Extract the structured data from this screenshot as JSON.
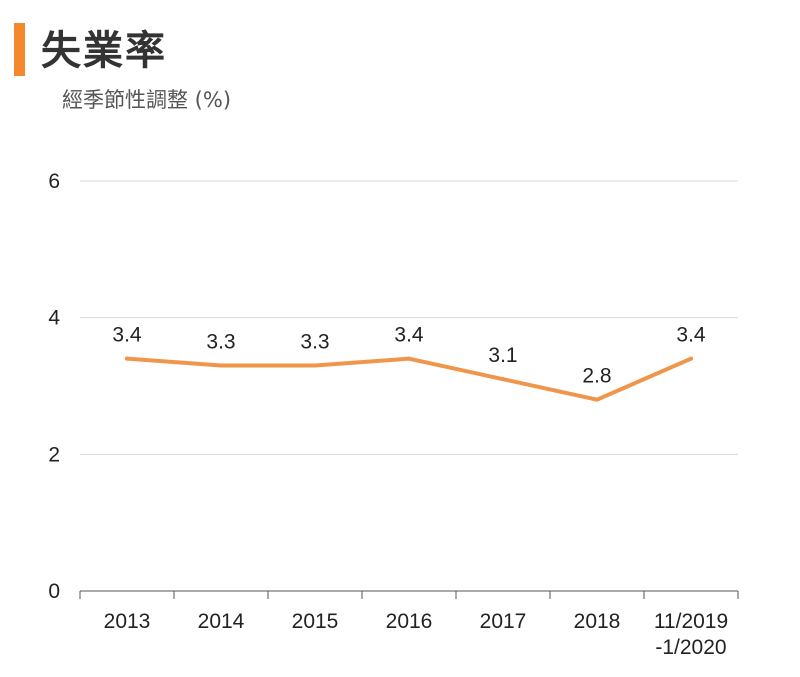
{
  "header": {
    "title": "失業率",
    "subtitle": "經季節性調整 (%)"
  },
  "colors": {
    "accent": "#f5872d",
    "line": "#f0964a",
    "grid": "#d9d9d9",
    "axis": "#555555"
  },
  "chart_data": {
    "type": "line",
    "title": "失業率",
    "subtitle": "經季節性調整 (%)",
    "categories": [
      [
        "2013"
      ],
      [
        "2014"
      ],
      [
        "2015"
      ],
      [
        "2016"
      ],
      [
        "2017"
      ],
      [
        "2018"
      ],
      [
        "11/2019",
        "-1/2020"
      ]
    ],
    "series": [
      {
        "values": [
          3.4,
          3.3,
          3.3,
          3.4,
          3.1,
          2.8,
          3.4
        ]
      }
    ],
    "data_labels": [
      "3.4",
      "3.3",
      "3.3",
      "3.4",
      "3.1",
      "2.8",
      "3.4"
    ],
    "y_ticks": [
      "0",
      "2",
      "4",
      "6"
    ],
    "ylim": [
      0,
      6
    ],
    "grid": true,
    "legend": "none"
  }
}
